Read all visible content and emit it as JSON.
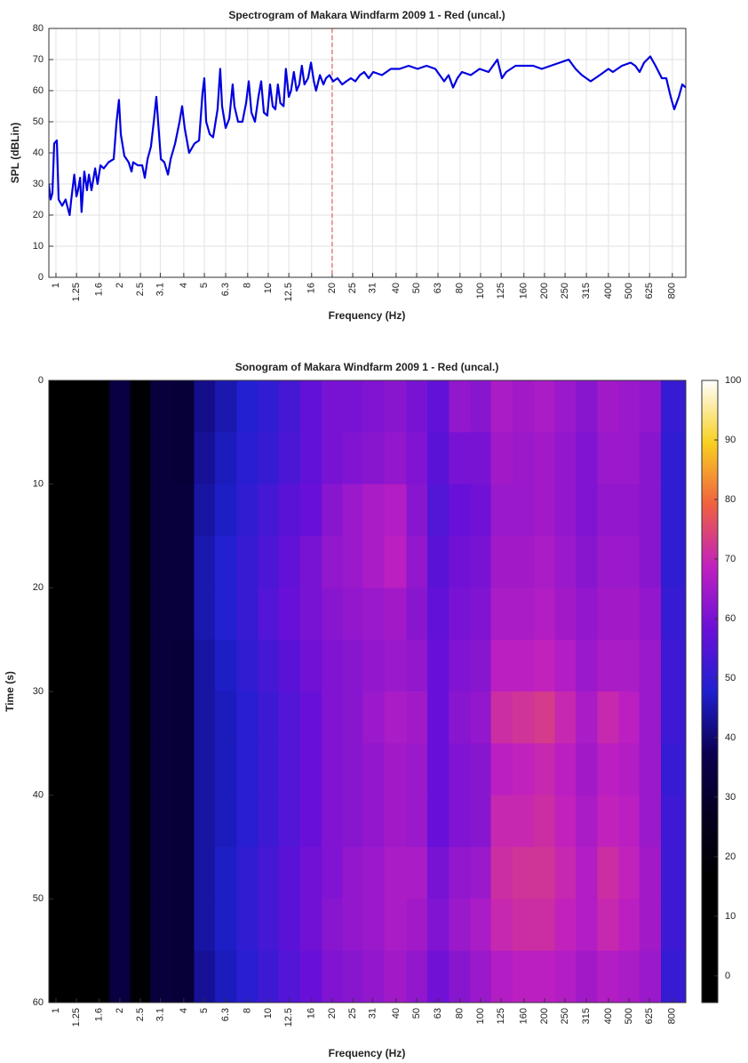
{
  "chart_data": [
    {
      "type": "line",
      "title": "Spectrogram of Makara Windfarm 2009 1 - Red (uncal.)",
      "x_label": "Frequency (Hz)",
      "y_label": "SPL (dBLin)",
      "xscale": "log",
      "xlim": [
        0.926,
        926
      ],
      "ylim": [
        0,
        80
      ],
      "xticks": [
        1,
        1.25,
        1.6,
        2,
        2.5,
        3.1,
        4,
        5,
        6.3,
        8,
        10,
        12.5,
        16,
        20,
        25,
        31,
        40,
        50,
        63,
        80,
        100,
        125,
        160,
        200,
        250,
        315,
        400,
        500,
        625,
        800
      ],
      "yticks": [
        0,
        10,
        20,
        30,
        40,
        50,
        60,
        70,
        80
      ],
      "grid": true,
      "color": "#0000e0",
      "vline": 20,
      "vline_color": "#e06060",
      "x": [
        0.926,
        0.944,
        0.962,
        0.981,
        1.01,
        1.03,
        1.07,
        1.11,
        1.16,
        1.18,
        1.22,
        1.25,
        1.27,
        1.3,
        1.32,
        1.36,
        1.4,
        1.43,
        1.47,
        1.53,
        1.57,
        1.62,
        1.68,
        1.77,
        1.87,
        1.93,
        1.98,
        2.02,
        2.1,
        2.2,
        2.27,
        2.31,
        2.43,
        2.55,
        2.62,
        2.7,
        2.8,
        2.89,
        2.97,
        3.03,
        3.12,
        3.24,
        3.37,
        3.47,
        3.64,
        3.82,
        3.93,
        4.04,
        4.24,
        4.49,
        4.72,
        4.9,
        5.0,
        5.1,
        5.3,
        5.5,
        5.77,
        5.94,
        6.06,
        6.3,
        6.55,
        6.8,
        6.93,
        7.21,
        7.56,
        7.86,
        8.09,
        8.33,
        8.66,
        8.99,
        9.26,
        9.53,
        9.9,
        10.2,
        10.5,
        10.8,
        11.1,
        11.4,
        11.8,
        12.1,
        12.5,
        12.8,
        13.2,
        13.6,
        14.0,
        14.4,
        14.8,
        15.4,
        15.9,
        16.4,
        16.8,
        17.5,
        18.2,
        18.7,
        19.4,
        20.2,
        21.2,
        22.3,
        23.3,
        24.5,
        25.7,
        27.0,
        28.3,
        29.7,
        31.2,
        34.3,
        37.8,
        41.6,
        45.8,
        50.5,
        55.6,
        61.2,
        67.4,
        70.7,
        74.2,
        77.8,
        81.7,
        89.9,
        99.0,
        109,
        120,
        126,
        132,
        146,
        177,
        194,
        214,
        236,
        260,
        280,
        300,
        330,
        364,
        400,
        420,
        463,
        509,
        535,
        561,
        589,
        630,
        667,
        714,
        749,
        786,
        817,
        858,
        891,
        926
      ],
      "values": [
        30,
        25,
        27,
        43,
        44,
        25,
        23,
        25,
        20,
        25,
        33,
        26,
        28,
        32,
        21,
        34,
        28,
        33,
        28,
        35,
        30,
        36,
        35,
        37,
        38,
        50,
        57,
        46,
        39,
        37,
        34,
        37,
        36,
        36,
        32,
        38,
        42,
        50,
        58,
        50,
        38,
        37,
        33,
        38,
        43,
        50,
        55,
        48,
        40,
        43,
        44,
        59,
        64,
        50,
        46,
        45,
        54,
        67,
        55,
        48,
        51,
        62,
        55,
        50,
        50,
        56,
        63,
        53,
        50,
        58,
        63,
        53,
        52,
        62,
        55,
        54,
        62,
        56,
        55,
        67,
        58,
        60,
        66,
        60,
        62,
        68,
        62,
        64,
        69,
        63,
        60,
        65,
        62,
        64,
        65,
        63,
        64,
        62,
        63,
        64,
        63,
        65,
        66,
        64,
        66,
        65,
        67,
        67,
        68,
        67,
        68,
        67,
        63,
        65,
        61,
        64,
        66,
        65,
        67,
        66,
        70,
        64,
        66,
        68,
        68,
        67,
        68,
        69,
        70,
        67,
        65,
        63,
        65,
        67,
        66,
        68,
        69,
        68,
        66,
        69,
        71,
        68,
        64,
        64,
        58,
        54,
        58,
        62,
        61
      ]
    },
    {
      "type": "heatmap",
      "title": "Sonogram of Makara Windfarm 2009 1 - Red (uncal.)",
      "x_label": "Frequency (Hz)",
      "y_label": "Time (s)",
      "xscale": "log",
      "xlim": [
        0.926,
        926
      ],
      "ylim": [
        0,
        60
      ],
      "y_reversed": true,
      "xticks": [
        1,
        1.25,
        1.6,
        2,
        2.5,
        3.1,
        4,
        5,
        6.3,
        8,
        10,
        12.5,
        16,
        20,
        25,
        31,
        40,
        50,
        63,
        80,
        100,
        125,
        160,
        200,
        250,
        315,
        400,
        500,
        625,
        800
      ],
      "yticks": [
        0,
        10,
        20,
        30,
        40,
        50,
        60
      ],
      "clim": [
        -4.5,
        100
      ],
      "cticks": [
        0,
        10,
        20,
        30,
        40,
        50,
        60,
        70,
        80,
        90,
        100
      ],
      "colormap": [
        "#000000",
        "#000000",
        "#000000",
        "#050020",
        "#0a0050",
        "#2020d0",
        "#6a10d8",
        "#c020c0",
        "#f06040",
        "#f8d020",
        "#ffffff"
      ],
      "x": [
        1,
        1.25,
        1.6,
        2,
        2.5,
        3.1,
        4,
        5,
        6.3,
        8,
        10,
        12.5,
        16,
        20,
        25,
        31,
        40,
        50,
        63,
        80,
        100,
        125,
        160,
        200,
        250,
        315,
        400,
        500,
        625,
        800
      ],
      "y": [
        2.5,
        7.5,
        12.5,
        17.5,
        22.5,
        27.5,
        32.5,
        37.5,
        42.5,
        47.5,
        52.5,
        57.5
      ],
      "z": [
        [
          12,
          14,
          15,
          34,
          18,
          33,
          32,
          42,
          45,
          48,
          50,
          53,
          57,
          60,
          60,
          61,
          62,
          60,
          57,
          63,
          62,
          66,
          65,
          66,
          64,
          62,
          65,
          64,
          63,
          51
        ],
        [
          12,
          14,
          15,
          34,
          18,
          33,
          32,
          43,
          46,
          49,
          51,
          54,
          57,
          60,
          61,
          62,
          63,
          61,
          56,
          60,
          60,
          65,
          64,
          65,
          63,
          61,
          64,
          64,
          62,
          50
        ],
        [
          12,
          14,
          15,
          34,
          18,
          33,
          33,
          44,
          47,
          50,
          53,
          56,
          58,
          62,
          64,
          66,
          67,
          62,
          55,
          58,
          59,
          64,
          64,
          65,
          63,
          61,
          63,
          63,
          62,
          50
        ],
        [
          12,
          14,
          15,
          34,
          18,
          33,
          33,
          45,
          48,
          51,
          54,
          57,
          60,
          63,
          64,
          66,
          68,
          63,
          56,
          59,
          60,
          65,
          65,
          66,
          64,
          62,
          64,
          64,
          62,
          50
        ],
        [
          12,
          14,
          15,
          34,
          18,
          33,
          33,
          45,
          48,
          51,
          55,
          58,
          60,
          62,
          63,
          64,
          65,
          62,
          57,
          60,
          61,
          66,
          66,
          67,
          65,
          63,
          65,
          65,
          63,
          51
        ],
        [
          12,
          14,
          15,
          34,
          18,
          33,
          32,
          44,
          47,
          50,
          53,
          56,
          59,
          61,
          62,
          63,
          64,
          63,
          58,
          61,
          62,
          68,
          68,
          69,
          67,
          64,
          66,
          66,
          64,
          52
        ],
        [
          12,
          14,
          15,
          34,
          18,
          33,
          32,
          44,
          46,
          49,
          52,
          55,
          58,
          61,
          62,
          64,
          66,
          65,
          58,
          62,
          63,
          71,
          72,
          73,
          70,
          66,
          70,
          68,
          64,
          52
        ],
        [
          12,
          14,
          15,
          34,
          18,
          33,
          32,
          44,
          46,
          49,
          52,
          55,
          58,
          61,
          62,
          63,
          65,
          64,
          58,
          61,
          62,
          68,
          69,
          70,
          68,
          65,
          68,
          67,
          64,
          51
        ],
        [
          12,
          14,
          15,
          34,
          18,
          33,
          32,
          44,
          46,
          49,
          52,
          55,
          58,
          61,
          62,
          63,
          65,
          64,
          58,
          61,
          62,
          70,
          70,
          71,
          69,
          66,
          69,
          68,
          64,
          52
        ],
        [
          12,
          14,
          15,
          34,
          18,
          33,
          32,
          44,
          47,
          50,
          53,
          56,
          59,
          61,
          63,
          64,
          66,
          66,
          60,
          63,
          64,
          71,
          72,
          72,
          70,
          67,
          71,
          69,
          65,
          52
        ],
        [
          12,
          14,
          15,
          34,
          18,
          33,
          32,
          44,
          47,
          50,
          53,
          56,
          59,
          62,
          63,
          64,
          66,
          65,
          61,
          64,
          66,
          70,
          71,
          71,
          69,
          67,
          70,
          68,
          65,
          52
        ],
        [
          12,
          14,
          15,
          34,
          18,
          33,
          32,
          43,
          46,
          49,
          52,
          55,
          58,
          61,
          62,
          63,
          65,
          63,
          59,
          62,
          64,
          67,
          68,
          68,
          67,
          65,
          67,
          66,
          64,
          51
        ]
      ]
    }
  ]
}
